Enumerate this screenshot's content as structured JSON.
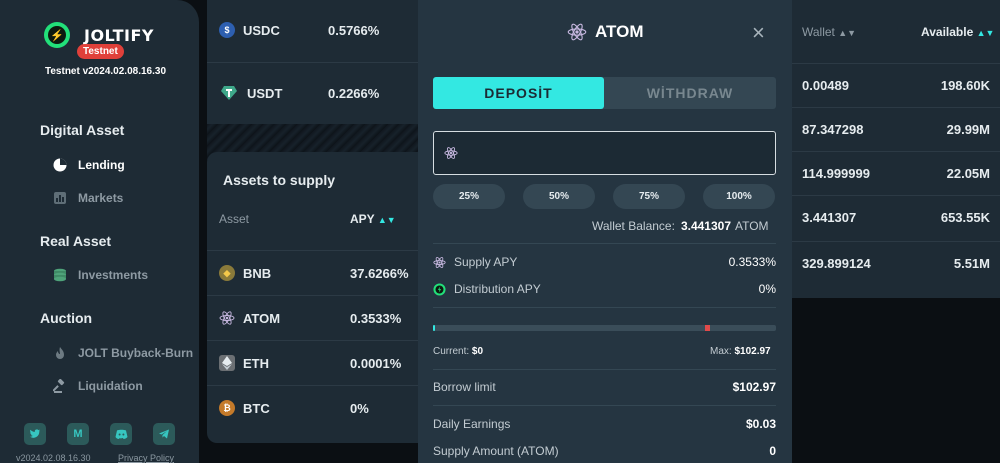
{
  "sidebar": {
    "brand": "JOLTIFY",
    "testnet": "Testnet",
    "version": "Testnet v2024.02.08.16.30",
    "sections": [
      {
        "title": "Digital Asset",
        "items": [
          {
            "label": "Lending",
            "active": true
          },
          {
            "label": "Markets"
          }
        ]
      },
      {
        "title": "Real Asset",
        "items": [
          {
            "label": "Investments"
          }
        ]
      },
      {
        "title": "Auction",
        "items": [
          {
            "label": "JOLT Buyback-Burn"
          },
          {
            "label": "Liquidation"
          }
        ]
      }
    ],
    "socials": [
      "twitter-icon",
      "medium-icon",
      "discord-icon",
      "telegram-icon"
    ],
    "medium_glyph": "M",
    "footer_version": "v2024.02.08.16.30",
    "footer_privacy": "Privacy Policy"
  },
  "top_assets": [
    {
      "symbol": "USDC",
      "apy": "0.5766%"
    },
    {
      "symbol": "USDT",
      "apy": "0.2266%"
    }
  ],
  "supply": {
    "title": "Assets to supply",
    "col_asset": "Asset",
    "col_apy": "APY",
    "rows": [
      {
        "symbol": "BNB",
        "apy": "37.6266%"
      },
      {
        "symbol": "ATOM",
        "apy": "0.3533%"
      },
      {
        "symbol": "ETH",
        "apy": "0.0001%"
      },
      {
        "symbol": "BTC",
        "apy": "0%"
      }
    ]
  },
  "right_table": {
    "col_wallet": "Wallet",
    "col_available": "Available",
    "rows": [
      {
        "wallet": "0.00489",
        "available": "198.60K"
      },
      {
        "wallet": "87.347298",
        "available": "29.99M"
      },
      {
        "wallet": "114.999999",
        "available": "22.05M"
      },
      {
        "wallet": "3.441307",
        "available": "653.55K"
      },
      {
        "wallet": "329.899124",
        "available": "5.51M"
      }
    ]
  },
  "modal": {
    "title": "ATOM",
    "tab_deposit": "DEPOSİT",
    "tab_withdraw": "WİTHDRAW",
    "amount_value": "",
    "pct_buttons": [
      "25%",
      "50%",
      "75%",
      "100%"
    ],
    "wallet_balance_label": "Wallet Balance:",
    "wallet_balance_value": "3.441307",
    "wallet_balance_unit": "ATOM",
    "supply_apy_label": "Supply APY",
    "supply_apy_value": "0.3533%",
    "distribution_apy_label": "Distribution APY",
    "distribution_apy_value": "0%",
    "progress_fraction": 0.0,
    "current_label": "Current:",
    "current_value": "$0",
    "max_label": "Max:",
    "max_value": "$102.97",
    "borrow_limit_label": "Borrow limit",
    "borrow_limit_value": "$102.97",
    "daily_earnings_label": "Daily Earnings",
    "daily_earnings_value": "$0.03",
    "supply_amount_label": "Supply Amount (ATOM)",
    "supply_amount_value": "0"
  },
  "colors": {
    "accent": "#33e8e2",
    "brand_green": "#22e07a",
    "testnet_red": "#e0403a"
  }
}
